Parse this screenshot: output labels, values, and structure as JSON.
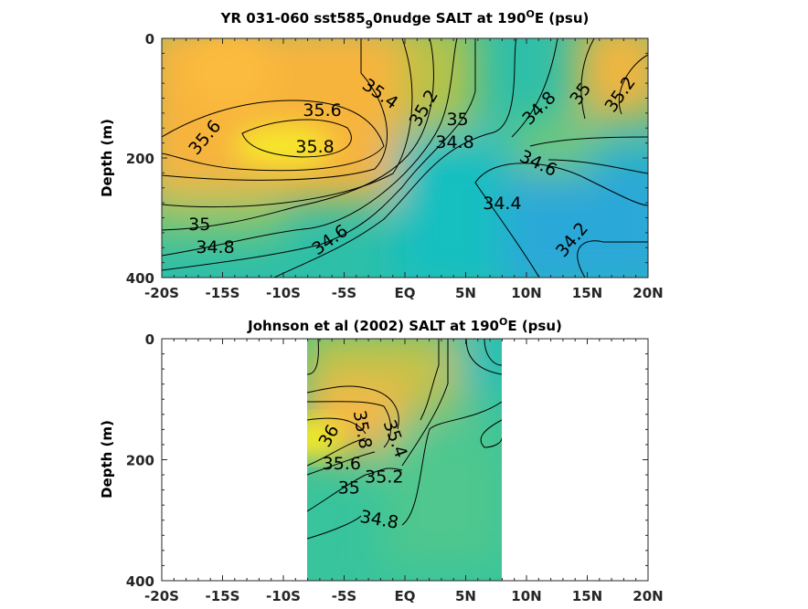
{
  "chart_data": [
    {
      "type": "heatmap",
      "subtype": "filled-contour",
      "title": {
        "pre": "YR 031-060 sst585",
        "sub": "9",
        "mid": "0nudge SALT at 190",
        "sup": "O",
        "post": "E (psu)"
      },
      "xlabel": "",
      "ylabel": "Depth (m)",
      "xlim": [
        -20,
        20
      ],
      "ylim": [
        0,
        400
      ],
      "y_reversed": true,
      "xticks": [
        "-20S",
        "-15S",
        "-10S",
        "-5S",
        "EQ",
        "5N",
        "10N",
        "15N",
        "20N"
      ],
      "yticks": [
        "0",
        "200",
        "400"
      ],
      "data_extent_lat": [
        -20,
        20
      ],
      "contour_labels": [
        {
          "text": "35.6",
          "lat": -16.5,
          "depth": 165,
          "rot": -50
        },
        {
          "text": "35.6",
          "lat": -6.8,
          "depth": 119,
          "rot": 0
        },
        {
          "text": "35.8",
          "lat": -7.4,
          "depth": 180,
          "rot": 0
        },
        {
          "text": "35.4",
          "lat": -2,
          "depth": 92,
          "rot": 35
        },
        {
          "text": "35.2",
          "lat": 1.5,
          "depth": 116,
          "rot": -60
        },
        {
          "text": "35",
          "lat": 3.2,
          "depth": 134,
          "rot": -45
        },
        {
          "text": "34.8",
          "lat": 4.1,
          "depth": 157,
          "rot": -30
        },
        {
          "text": "34.8",
          "lat": 11,
          "depth": 116,
          "rot": -45
        },
        {
          "text": "35",
          "lat": 14.4,
          "depth": 92,
          "rot": -55
        },
        {
          "text": "35.2",
          "lat": 16.9,
          "depth": 93,
          "rot": -55
        },
        {
          "text": "34.6",
          "lat": 11,
          "depth": 208,
          "rot": 25
        },
        {
          "text": "34.4",
          "lat": 8,
          "depth": 275,
          "rot": 60
        },
        {
          "text": "34.2",
          "lat": 13.7,
          "depth": 336,
          "rot": -50
        },
        {
          "text": "35",
          "lat": -16.9,
          "depth": 310,
          "rot": 0
        },
        {
          "text": "34.8",
          "lat": -15.6,
          "depth": 348,
          "rot": -10
        },
        {
          "text": "34.6",
          "lat": -6.2,
          "depth": 336,
          "rot": -35
        }
      ]
    },
    {
      "type": "heatmap",
      "subtype": "filled-contour",
      "title": {
        "pre": "Johnson et al (2002) SALT at 190",
        "sup": "O",
        "post": "E (psu)"
      },
      "xlabel": "",
      "ylabel": "Depth (m)",
      "xlim": [
        -20,
        20
      ],
      "ylim": [
        0,
        400
      ],
      "y_reversed": true,
      "xticks": [
        "-20S",
        "-15S",
        "-10S",
        "-5S",
        "EQ",
        "5N",
        "10N",
        "15N",
        "20N"
      ],
      "yticks": [
        "0",
        "200",
        "400"
      ],
      "data_extent_lat": [
        -8,
        8
      ],
      "contour_labels": [
        {
          "text": "36",
          "lat": -6.3,
          "depth": 160,
          "rot": -60
        },
        {
          "text": "35.8",
          "lat": -4.2,
          "depth": 150,
          "rot": 80
        },
        {
          "text": "35.6",
          "lat": -5.2,
          "depth": 175,
          "rot": -60
        },
        {
          "text": "35.4",
          "lat": -3,
          "depth": 165,
          "rot": 70
        },
        {
          "text": "35.2",
          "lat": -3.3,
          "depth": 195,
          "rot": -65
        },
        {
          "text": "35",
          "lat": -4.6,
          "depth": 215,
          "rot": -65
        },
        {
          "text": "34.8",
          "lat": -2.1,
          "depth": 298,
          "rot": 10
        }
      ]
    }
  ]
}
